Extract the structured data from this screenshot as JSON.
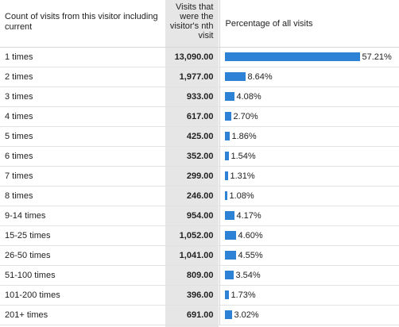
{
  "headers": {
    "label": "Count of visits from this visitor including current",
    "visits": "Visits that were the visitor's nth visit",
    "percentage": "Percentage of all visits"
  },
  "colors": {
    "bar": "#2e82d6"
  },
  "rows": [
    {
      "label": "1 times",
      "visits": "13,090.00",
      "pct": "57.21%",
      "fraction": 0.5721
    },
    {
      "label": "2 times",
      "visits": "1,977.00",
      "pct": "8.64%",
      "fraction": 0.0864
    },
    {
      "label": "3 times",
      "visits": "933.00",
      "pct": "4.08%",
      "fraction": 0.0408
    },
    {
      "label": "4 times",
      "visits": "617.00",
      "pct": "2.70%",
      "fraction": 0.027
    },
    {
      "label": "5 times",
      "visits": "425.00",
      "pct": "1.86%",
      "fraction": 0.0186
    },
    {
      "label": "6 times",
      "visits": "352.00",
      "pct": "1.54%",
      "fraction": 0.0154
    },
    {
      "label": "7 times",
      "visits": "299.00",
      "pct": "1.31%",
      "fraction": 0.0131
    },
    {
      "label": "8 times",
      "visits": "246.00",
      "pct": "1.08%",
      "fraction": 0.0108
    },
    {
      "label": "9-14 times",
      "visits": "954.00",
      "pct": "4.17%",
      "fraction": 0.0417
    },
    {
      "label": "15-25 times",
      "visits": "1,052.00",
      "pct": "4.60%",
      "fraction": 0.046
    },
    {
      "label": "26-50 times",
      "visits": "1,041.00",
      "pct": "4.55%",
      "fraction": 0.0455
    },
    {
      "label": "51-100 times",
      "visits": "809.00",
      "pct": "3.54%",
      "fraction": 0.0354
    },
    {
      "label": "101-200 times",
      "visits": "396.00",
      "pct": "1.73%",
      "fraction": 0.0173
    },
    {
      "label": "201+ times",
      "visits": "691.00",
      "pct": "3.02%",
      "fraction": 0.0302
    }
  ]
}
